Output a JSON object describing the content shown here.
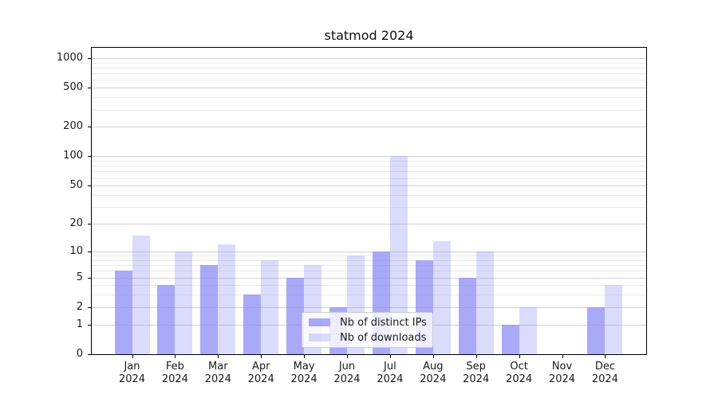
{
  "chart_data": {
    "type": "bar",
    "title": "statmod 2024",
    "categories": [
      "Jan 2024",
      "Feb 2024",
      "Mar 2024",
      "Apr 2024",
      "May 2024",
      "Jun 2024",
      "Jul 2024",
      "Aug 2024",
      "Sep 2024",
      "Oct 2024",
      "Nov 2024",
      "Dec 2024"
    ],
    "series": [
      {
        "name": "Nb of distinct IPs",
        "key": "distinct-ips",
        "color": "rgba(136,136,245,0.72)",
        "values": [
          6,
          4,
          7,
          3,
          5,
          2,
          10,
          8,
          5,
          1,
          0,
          2
        ]
      },
      {
        "name": "Nb of downloads",
        "key": "downloads",
        "color": "rgba(136,136,245,0.30)",
        "values": [
          15,
          10,
          12,
          8,
          7,
          9,
          100,
          13,
          10,
          2,
          0,
          4
        ]
      }
    ],
    "xlabel": "",
    "ylabel": "",
    "yscale": "log1p",
    "yticks": [
      0,
      1,
      2,
      5,
      10,
      20,
      50,
      100,
      200,
      500,
      1000
    ],
    "minor_yticks": [
      3,
      4,
      6,
      7,
      8,
      9,
      30,
      40,
      60,
      70,
      80,
      90,
      300,
      400,
      600,
      700,
      800,
      900
    ],
    "ylim": [
      0,
      1270
    ],
    "grid": true,
    "legend_position": "lower center",
    "colors": {
      "grid_major": "#d2d2d2",
      "grid_minor": "#eaeaea",
      "axis": "#000000",
      "text": "#1a1a1a"
    }
  }
}
